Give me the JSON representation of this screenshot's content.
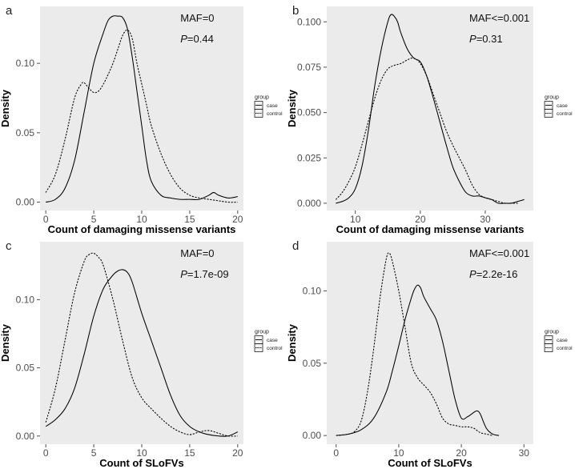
{
  "figure": {
    "legend_title": "group",
    "legend_items": [
      "case",
      "control"
    ]
  },
  "chart_data": [
    {
      "type": "line",
      "panel_label": "a",
      "annotation": {
        "line1": "MAF=0",
        "p_prefix": "P",
        "p_value": "=0.44"
      },
      "xlabel": "Count of damaging missense variants",
      "ylabel": "Density",
      "xlim": [
        -0.6,
        20.6
      ],
      "ylim": [
        -0.006,
        0.141
      ],
      "x_ticks": [
        0,
        5,
        10,
        15,
        20
      ],
      "x_tick_labels": [
        "0",
        "5",
        "10",
        "15",
        "20"
      ],
      "y_ticks": [
        0,
        0.05,
        0.1
      ],
      "y_tick_labels": [
        "0.00",
        "0.05",
        "0.10"
      ],
      "grid": false,
      "legend_position": "right",
      "series": [
        {
          "name": "case",
          "linestyle": "solid",
          "x": [
            0.0,
            1.0,
            2.0,
            3.0,
            4.0,
            5.0,
            6.0,
            6.5,
            7.0,
            7.5,
            8.0,
            8.5,
            9.0,
            9.5,
            10.0,
            10.5,
            11.0,
            12.0,
            13.0,
            14.0,
            15.0,
            16.0,
            17.0,
            17.5,
            18.0,
            19.0,
            20.0
          ],
          "y": [
            0.0,
            0.002,
            0.01,
            0.03,
            0.065,
            0.1,
            0.122,
            0.131,
            0.134,
            0.134,
            0.133,
            0.125,
            0.105,
            0.08,
            0.055,
            0.03,
            0.015,
            0.005,
            0.003,
            0.002,
            0.002,
            0.002,
            0.005,
            0.007,
            0.005,
            0.003,
            0.004
          ]
        },
        {
          "name": "control",
          "linestyle": "dotted",
          "x": [
            0.0,
            1.0,
            2.0,
            3.0,
            3.7,
            4.0,
            4.5,
            5.0,
            5.5,
            6.0,
            6.5,
            7.0,
            7.5,
            8.0,
            8.5,
            9.0,
            9.5,
            10.0,
            10.5,
            11.0,
            12.0,
            13.0,
            14.0,
            15.0,
            16.0,
            17.0,
            18.0,
            19.0,
            20.0
          ],
          "y": [
            0.007,
            0.02,
            0.045,
            0.075,
            0.085,
            0.086,
            0.082,
            0.079,
            0.08,
            0.085,
            0.092,
            0.1,
            0.11,
            0.12,
            0.124,
            0.118,
            0.1,
            0.085,
            0.07,
            0.055,
            0.035,
            0.02,
            0.01,
            0.005,
            0.003,
            0.002,
            0.001,
            0.0,
            0.0
          ]
        }
      ]
    },
    {
      "type": "line",
      "panel_label": "b",
      "annotation": {
        "line1": "MAF<=0.001",
        "p_prefix": "P",
        "p_value": "=0.31"
      },
      "xlabel": "Count of damaging missense variants",
      "ylabel": "Density",
      "xlim": [
        5.6,
        37.4
      ],
      "ylim": [
        -0.004,
        0.1085
      ],
      "x_ticks": [
        10,
        20,
        30
      ],
      "x_tick_labels": [
        "10",
        "20",
        "30"
      ],
      "y_ticks": [
        0,
        0.025,
        0.05,
        0.075,
        0.1
      ],
      "y_tick_labels": [
        "0.000",
        "0.025",
        "0.050",
        "0.075",
        "0.100"
      ],
      "grid": false,
      "legend_position": "right",
      "series": [
        {
          "name": "case",
          "linestyle": "solid",
          "x": [
            7,
            8,
            9,
            10,
            11,
            12,
            13,
            14,
            15,
            15.5,
            16,
            16.5,
            17,
            18,
            19,
            20,
            21,
            22,
            23,
            24,
            25,
            26,
            27,
            28,
            29,
            30,
            31,
            32,
            33,
            34,
            35,
            36
          ],
          "y": [
            0.0,
            0.001,
            0.003,
            0.008,
            0.02,
            0.04,
            0.065,
            0.085,
            0.1,
            0.104,
            0.103,
            0.1,
            0.094,
            0.085,
            0.08,
            0.078,
            0.07,
            0.058,
            0.045,
            0.032,
            0.02,
            0.012,
            0.006,
            0.004,
            0.004,
            0.003,
            0.002,
            0.0,
            0.0,
            0.0,
            0.001,
            0.002
          ]
        },
        {
          "name": "control",
          "linestyle": "dotted",
          "x": [
            7,
            8,
            9,
            10,
            11,
            12,
            13,
            14,
            15,
            16,
            17,
            18,
            19,
            20,
            21,
            22,
            23,
            24,
            25,
            26,
            27,
            28,
            29,
            30,
            31,
            32,
            33,
            34,
            35
          ],
          "y": [
            0.002,
            0.006,
            0.012,
            0.02,
            0.032,
            0.045,
            0.058,
            0.068,
            0.074,
            0.076,
            0.077,
            0.079,
            0.08,
            0.077,
            0.07,
            0.06,
            0.05,
            0.04,
            0.032,
            0.025,
            0.018,
            0.01,
            0.005,
            0.003,
            0.002,
            0.001,
            0.0,
            0.0,
            0.0
          ]
        }
      ]
    },
    {
      "type": "line",
      "panel_label": "c",
      "annotation": {
        "line1": "MAF=0",
        "p_prefix": "P",
        "p_value": "=1.7e-09"
      },
      "xlabel": "Count of SLoFVs",
      "ylabel": "Density",
      "xlim": [
        -0.6,
        20.6
      ],
      "ylim": [
        -0.006,
        0.1425
      ],
      "x_ticks": [
        0,
        5,
        10,
        15,
        20
      ],
      "x_tick_labels": [
        "0",
        "5",
        "10",
        "15",
        "20"
      ],
      "y_ticks": [
        0,
        0.05,
        0.1
      ],
      "y_tick_labels": [
        "0.00",
        "0.05",
        "0.10"
      ],
      "grid": false,
      "legend_position": "right",
      "series": [
        {
          "name": "case",
          "linestyle": "solid",
          "x": [
            0,
            1,
            2,
            3,
            4,
            5,
            6,
            7,
            7.5,
            8,
            8.5,
            9,
            10,
            11,
            12,
            13,
            14,
            15,
            16,
            17,
            18,
            19,
            20
          ],
          "y": [
            0.007,
            0.012,
            0.02,
            0.035,
            0.06,
            0.088,
            0.108,
            0.118,
            0.121,
            0.122,
            0.12,
            0.113,
            0.09,
            0.07,
            0.05,
            0.03,
            0.015,
            0.007,
            0.003,
            0.001,
            0.0,
            0.0,
            0.003
          ]
        },
        {
          "name": "control",
          "linestyle": "dotted",
          "x": [
            0,
            1,
            2,
            3,
            4,
            4.5,
            5,
            5.5,
            6,
            7,
            8,
            9,
            10,
            11,
            12,
            13,
            14,
            15,
            16,
            17,
            18,
            19,
            20
          ],
          "y": [
            0.01,
            0.035,
            0.07,
            0.105,
            0.128,
            0.133,
            0.134,
            0.131,
            0.125,
            0.1,
            0.07,
            0.043,
            0.028,
            0.02,
            0.013,
            0.007,
            0.003,
            0.001,
            0.003,
            0.004,
            0.002,
            0.0,
            0.0
          ]
        }
      ]
    },
    {
      "type": "line",
      "panel_label": "d",
      "annotation": {
        "line1": "MAF<=0.001",
        "p_prefix": "P",
        "p_value": "=2.2e-16"
      },
      "xlabel": "Count of SLoFVs",
      "ylabel": "Density",
      "xlim": [
        -1.5,
        31.5
      ],
      "ylim": [
        -0.006,
        0.134
      ],
      "x_ticks": [
        0,
        10,
        20,
        30
      ],
      "x_tick_labels": [
        "0",
        "10",
        "20",
        "30"
      ],
      "y_ticks": [
        0,
        0.05,
        0.1
      ],
      "y_tick_labels": [
        "0.00",
        "0.05",
        "0.10"
      ],
      "grid": false,
      "legend_position": "right",
      "series": [
        {
          "name": "case",
          "linestyle": "solid",
          "x": [
            0,
            2,
            4,
            6,
            8,
            9,
            10,
            11,
            12,
            12.5,
            13,
            13.5,
            14,
            15,
            16,
            17,
            18,
            19,
            20,
            21,
            22,
            22.5,
            23,
            24,
            25,
            26
          ],
          "y": [
            0.0,
            0.001,
            0.004,
            0.012,
            0.03,
            0.045,
            0.062,
            0.08,
            0.095,
            0.101,
            0.104,
            0.102,
            0.096,
            0.088,
            0.08,
            0.065,
            0.045,
            0.025,
            0.012,
            0.013,
            0.016,
            0.017,
            0.015,
            0.005,
            0.001,
            0.0
          ]
        },
        {
          "name": "control",
          "linestyle": "dotted",
          "x": [
            0,
            2,
            3,
            4,
            5,
            6,
            7,
            8,
            8.5,
            9,
            10,
            11,
            12,
            13,
            14,
            15,
            16,
            17,
            18,
            19,
            20,
            21,
            22,
            23,
            24,
            25
          ],
          "y": [
            0.0,
            0.001,
            0.003,
            0.01,
            0.03,
            0.06,
            0.095,
            0.122,
            0.126,
            0.12,
            0.1,
            0.075,
            0.05,
            0.04,
            0.035,
            0.03,
            0.022,
            0.012,
            0.008,
            0.007,
            0.006,
            0.006,
            0.005,
            0.002,
            0.001,
            0.0
          ]
        }
      ]
    }
  ]
}
